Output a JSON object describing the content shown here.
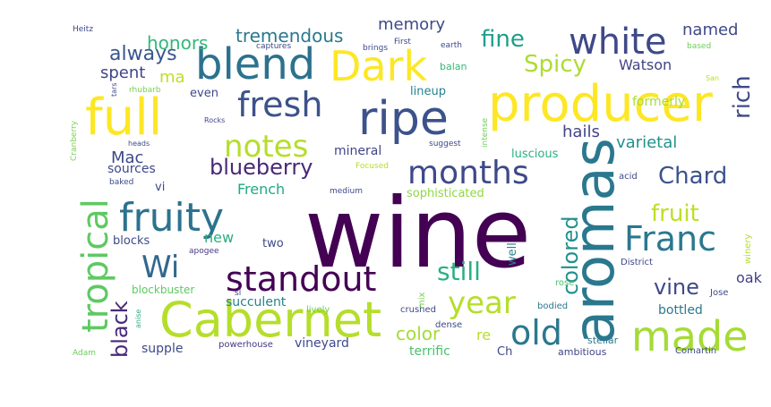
{
  "words": [
    {
      "text": "wine",
      "color": "#440154"
    },
    {
      "text": "aromas",
      "color": "#2a788e"
    },
    {
      "text": "Cabernet",
      "color": "#b5de2b"
    },
    {
      "text": "producer",
      "color": "#fde725"
    },
    {
      "text": "full",
      "color": "#fde725"
    },
    {
      "text": "ripe",
      "color": "#3b528b"
    },
    {
      "text": "Dark",
      "color": "#fde725"
    },
    {
      "text": "blend",
      "color": "#2c728e"
    },
    {
      "text": "fruity",
      "color": "#2c728e"
    },
    {
      "text": "standout",
      "color": "#440154"
    },
    {
      "text": "made",
      "color": "#a5db36"
    },
    {
      "text": "tropical",
      "color": "#5ec962"
    },
    {
      "text": "white",
      "color": "#3e4989"
    },
    {
      "text": "fresh",
      "color": "#3b528b"
    },
    {
      "text": "months",
      "color": "#3e4989"
    },
    {
      "text": "Franc",
      "color": "#2a788e"
    },
    {
      "text": "old",
      "color": "#2a788e"
    },
    {
      "text": "notes",
      "color": "#b5de2b"
    },
    {
      "text": "year",
      "color": "#b5de2b"
    },
    {
      "text": "Wi",
      "color": "#31688e"
    },
    {
      "text": "colored",
      "color": "#21918c"
    },
    {
      "text": "black",
      "color": "#482878"
    },
    {
      "text": "still",
      "color": "#2ab07f"
    },
    {
      "text": "Spicy",
      "color": "#addc30"
    },
    {
      "text": "fine",
      "color": "#1f9e89"
    },
    {
      "text": "rich",
      "color": "#3e4989"
    },
    {
      "text": "blueberry",
      "color": "#482878"
    },
    {
      "text": "Chard",
      "color": "#3b528b"
    },
    {
      "text": "fruit",
      "color": "#bddf26"
    },
    {
      "text": "vine",
      "color": "#3e4989"
    },
    {
      "text": "always",
      "color": "#39568c"
    },
    {
      "text": "tremendous",
      "color": "#2a788e"
    },
    {
      "text": "honors",
      "color": "#35b779"
    },
    {
      "text": "memory",
      "color": "#3e4989"
    },
    {
      "text": "named",
      "color": "#3e4989"
    },
    {
      "text": "color",
      "color": "#a5db36"
    },
    {
      "text": "varietal",
      "color": "#21918c"
    },
    {
      "text": "hails",
      "color": "#414487"
    },
    {
      "text": "Watson",
      "color": "#414487"
    },
    {
      "text": "spent",
      "color": "#414487"
    },
    {
      "text": "ma",
      "color": "#bddf26"
    },
    {
      "text": "Mac",
      "color": "#3e4989"
    },
    {
      "text": "French",
      "color": "#22a884"
    },
    {
      "text": "oak",
      "color": "#433e85"
    },
    {
      "text": "re",
      "color": "#b5de2b"
    },
    {
      "text": "bottled",
      "color": "#2a788e"
    },
    {
      "text": "new",
      "color": "#2ab07f"
    },
    {
      "text": "formerly",
      "color": "#a5db36"
    },
    {
      "text": "sources",
      "color": "#3e4989"
    },
    {
      "text": "sophisticated",
      "color": "#8fd744"
    },
    {
      "text": "mineral",
      "color": "#404688"
    },
    {
      "text": "luscious",
      "color": "#2ab07f"
    },
    {
      "text": "succulent",
      "color": "#26828e"
    },
    {
      "text": "vineyard",
      "color": "#3e4989"
    },
    {
      "text": "supple",
      "color": "#3e4989"
    },
    {
      "text": "terrific",
      "color": "#4ac16d"
    },
    {
      "text": "blocks",
      "color": "#3e4989"
    },
    {
      "text": "two",
      "color": "#3e4989"
    },
    {
      "text": "well",
      "color": "#26828e"
    },
    {
      "text": "vi",
      "color": "#3e4989"
    },
    {
      "text": "even",
      "color": "#3e4989"
    },
    {
      "text": "lineup",
      "color": "#26828e"
    },
    {
      "text": "balan",
      "color": "#35b779"
    },
    {
      "text": "Ch",
      "color": "#3e4989"
    },
    {
      "text": "blockbuster",
      "color": "#5ec962"
    },
    {
      "text": "powerhouse",
      "color": "#443983"
    },
    {
      "text": "ambitious",
      "color": "#414487"
    },
    {
      "text": "stellar",
      "color": "#2a788e"
    },
    {
      "text": "Comartin",
      "color": "#3e4989"
    },
    {
      "text": "bodied",
      "color": "#2a788e"
    },
    {
      "text": "Jose",
      "color": "#3e4989"
    },
    {
      "text": "District",
      "color": "#3e4989"
    },
    {
      "text": "rose",
      "color": "#4ac16d"
    },
    {
      "text": "acid",
      "color": "#3e4989"
    },
    {
      "text": "winery",
      "color": "#b5de2b"
    },
    {
      "text": "crushed",
      "color": "#3e4989"
    },
    {
      "text": "dense",
      "color": "#3e4989"
    },
    {
      "text": "mix",
      "color": "#7ad151"
    },
    {
      "text": "lively",
      "color": "#6ccd5a"
    },
    {
      "text": "sl",
      "color": "#3e4989"
    },
    {
      "text": "apogee",
      "color": "#443983"
    },
    {
      "text": "medium",
      "color": "#3e4989"
    },
    {
      "text": "baked",
      "color": "#3e4989"
    },
    {
      "text": "Focused",
      "color": "#b5de2b"
    },
    {
      "text": "suggest",
      "color": "#3e4989"
    },
    {
      "text": "intense",
      "color": "#6ccd5a"
    },
    {
      "text": "heads",
      "color": "#3e4989"
    },
    {
      "text": "Rocks",
      "color": "#414487"
    },
    {
      "text": "rhubarb",
      "color": "#7ad151"
    },
    {
      "text": "Cranberry",
      "color": "#7ad151"
    },
    {
      "text": "tars",
      "color": "#3e4989"
    },
    {
      "text": "captures",
      "color": "#3e4989"
    },
    {
      "text": "brings",
      "color": "#3e4989"
    },
    {
      "text": "First",
      "color": "#3e4989"
    },
    {
      "text": "earth",
      "color": "#3e4989"
    },
    {
      "text": "based",
      "color": "#6ccd5a"
    },
    {
      "text": "San",
      "color": "#b5de2b"
    },
    {
      "text": "Heitz",
      "color": "#3e4989"
    },
    {
      "text": "Adam",
      "color": "#6ccd5a"
    },
    {
      "text": "anise",
      "color": "#2ab07f"
    }
  ]
}
